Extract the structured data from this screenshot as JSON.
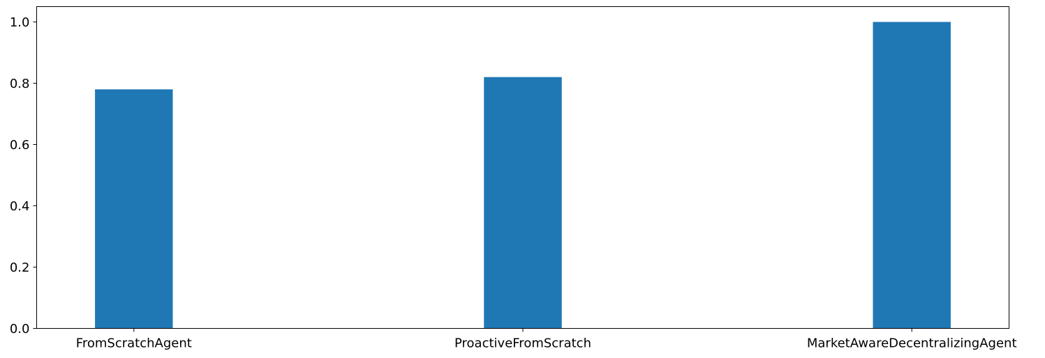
{
  "chart_data": {
    "type": "bar",
    "title": "",
    "xlabel": "",
    "ylabel": "",
    "categories": [
      "FromScratchAgent",
      "ProactiveFromScratch",
      "MarketAwareDecentralizingAgent"
    ],
    "values": [
      0.78,
      0.82,
      1.0
    ],
    "ylim": [
      0,
      1.05
    ],
    "yticks": [
      0.0,
      0.2,
      0.4,
      0.6,
      0.8,
      1.0
    ],
    "ytick_labels": [
      "0.0",
      "0.2",
      "0.4",
      "0.6",
      "0.8",
      "1.0"
    ],
    "bar_color": "#1f77b4",
    "grid": false,
    "legend": "none"
  }
}
